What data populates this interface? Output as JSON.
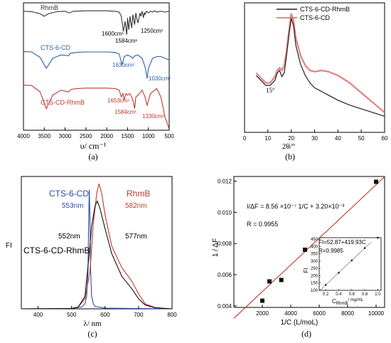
{
  "chart_data": [
    {
      "panel_label": "(a)",
      "type": "line",
      "xlabel": "υ/ cm⁻¹",
      "xlim": [
        4000,
        500
      ],
      "xticks": [
        4000,
        3500,
        3000,
        2500,
        2000,
        1500,
        1000,
        500
      ],
      "series": [
        {
          "name": "RhmB",
          "color": "#333333",
          "x": [
            4000,
            3800,
            3600,
            3500,
            3400,
            3200,
            3000,
            2900,
            2800,
            2500,
            2200,
            2000,
            1800,
            1700,
            1650,
            1600,
            1560,
            1520,
            1500,
            1470,
            1440,
            1400,
            1370,
            1330,
            1300,
            1280,
            1250,
            1200,
            1180,
            1150,
            1120,
            1100,
            1080,
            1050,
            1000,
            950,
            900,
            850,
            800,
            700,
            600,
            500
          ],
          "y": [
            10,
            10.5,
            13,
            16,
            13,
            10.5,
            10,
            12,
            10,
            9.5,
            9.5,
            9.5,
            10,
            11,
            16,
            34,
            22,
            38,
            18,
            32,
            16,
            30,
            14,
            26,
            12,
            18,
            24,
            12,
            16,
            10,
            18,
            12,
            14,
            10,
            12,
            10,
            11,
            9.5,
            11,
            10,
            11,
            10
          ]
        },
        {
          "name": "CTS-6-CD",
          "color": "#2e5fa8",
          "x": [
            4000,
            3800,
            3600,
            3450,
            3300,
            3100,
            2920,
            2870,
            2700,
            2500,
            2200,
            2000,
            1800,
            1700,
            1630,
            1580,
            1500,
            1420,
            1380,
            1320,
            1250,
            1150,
            1080,
            1030,
            1000,
            900,
            800,
            700,
            600,
            500
          ],
          "y": [
            58,
            58.5,
            65,
            78,
            66,
            62,
            63,
            60,
            59,
            58.5,
            58.5,
            58.5,
            59,
            61,
            74,
            64,
            62,
            64,
            66,
            63,
            62,
            66,
            76,
            90,
            78,
            66,
            64,
            64,
            66,
            68
          ]
        },
        {
          "name": "CTS-CD-RhmB",
          "color": "#c0392b",
          "x": [
            4000,
            3800,
            3600,
            3450,
            3300,
            3100,
            2920,
            2850,
            2700,
            2500,
            2200,
            2000,
            1800,
            1700,
            1653,
            1610,
            1584,
            1540,
            1500,
            1450,
            1400,
            1360,
            1330,
            1300,
            1250,
            1150,
            1080,
            1030,
            950,
            900,
            800,
            700,
            600,
            500
          ],
          "y": [
            98,
            98.5,
            106,
            126,
            110,
            104,
            106,
            103,
            102,
            101.5,
            101.5,
            101.5,
            102,
            104,
            112,
            108,
            116,
            108,
            110,
            108,
            112,
            118,
            126,
            112,
            110,
            104,
            112,
            122,
            108,
            106,
            102,
            112,
            136,
            150
          ]
        }
      ],
      "annotations": [
        "1600cm¹",
        "1584cm¹",
        "1250cm¹",
        "1630cm¹",
        "1030cm¹",
        "1653cm¹",
        "1584cm¹",
        "1330cm¹"
      ]
    },
    {
      "panel_label": "(b)",
      "type": "line",
      "xlabel": "2θ/°",
      "xlim": [
        0,
        60
      ],
      "xticks": [
        0,
        10,
        20,
        30,
        40,
        50,
        60
      ],
      "ylim": [
        0,
        100
      ],
      "legend": "top-right",
      "series": [
        {
          "name": "CTS-6-CD-RhmB",
          "color": "#222222",
          "x": [
            5,
            7,
            9,
            11,
            13,
            14,
            15,
            16,
            17,
            18,
            19,
            20,
            21,
            22,
            24,
            26,
            28,
            30,
            33,
            36,
            40,
            45,
            50,
            55,
            60
          ],
          "y": [
            46,
            42,
            38,
            38,
            42,
            48,
            50,
            45,
            48,
            62,
            78,
            92,
            86,
            70,
            55,
            46,
            40,
            36,
            33,
            30,
            26,
            22,
            19,
            16,
            13
          ]
        },
        {
          "name": "CTS-6-CD",
          "color": "#e06060",
          "x": [
            5,
            7,
            9,
            11,
            13,
            14,
            15,
            16,
            17,
            18,
            19,
            20,
            21,
            22,
            24,
            26,
            28,
            30,
            33,
            36,
            40,
            45,
            50,
            55,
            60
          ],
          "y": [
            48,
            44,
            40,
            40,
            45,
            50,
            52,
            50,
            54,
            66,
            82,
            96,
            90,
            76,
            62,
            54,
            50,
            49,
            50,
            49,
            46,
            40,
            32,
            24,
            16
          ]
        }
      ],
      "annotations": [
        "15°"
      ]
    },
    {
      "panel_label": "(c)",
      "type": "line",
      "xlabel": "λ/ nm",
      "ylabel": "FI",
      "xlim": [
        350,
        800
      ],
      "xticks": [
        400,
        500,
        600,
        700,
        800
      ],
      "ylim": [
        0,
        100
      ],
      "series": [
        {
          "name": "CTS-6-CD",
          "color": "#2a4bb0",
          "x": [
            350,
            500,
            530,
            540,
            545,
            549,
            551,
            553,
            555,
            557,
            560,
            565,
            570,
            600,
            800
          ],
          "y": [
            0,
            0.3,
            1.5,
            4,
            10,
            30,
            70,
            95,
            70,
            30,
            10,
            4,
            2,
            0.5,
            0
          ]
        },
        {
          "name": "RhmB",
          "color": "#c0392b",
          "x": [
            350,
            500,
            520,
            540,
            555,
            565,
            575,
            582,
            590,
            600,
            620,
            650,
            680,
            700,
            720,
            750,
            800
          ],
          "y": [
            0,
            0.3,
            1.5,
            8,
            30,
            68,
            92,
            100,
            92,
            75,
            50,
            33,
            22,
            12,
            4,
            1,
            0
          ]
        },
        {
          "name": "CTS-6-CD-RhmB",
          "color": "#111111",
          "x": [
            350,
            500,
            520,
            540,
            552,
            560,
            570,
            577,
            585,
            600,
            620,
            650,
            680,
            700,
            720,
            750,
            800
          ],
          "y": [
            0,
            0.3,
            1.5,
            10,
            42,
            66,
            82,
            86,
            80,
            64,
            44,
            26,
            16,
            8,
            3,
            0.8,
            0
          ]
        }
      ],
      "annotations": [
        "553nm",
        "582nm",
        "552nm",
        "577nm"
      ]
    },
    {
      "panel_label": "(d)",
      "type": "scatter",
      "xlabel": "1/C (L/moL)",
      "ylabel": "1 / ΔF",
      "xlim": [
        0,
        10600
      ],
      "ylim": [
        0.0039,
        0.0123
      ],
      "xticks": [
        2000,
        4000,
        6000,
        8000,
        10000
      ],
      "yticks": [
        0.004,
        0.006,
        0.008,
        0.01,
        0.012
      ],
      "points": {
        "x": [
          2000,
          2500,
          3333,
          5000,
          10000
        ],
        "y": [
          0.00433,
          0.00557,
          0.00566,
          0.0076,
          0.01196
        ]
      },
      "fit": {
        "x": [
          0,
          10600
        ],
        "y": [
          0.0032,
          0.01228
        ],
        "color": "#c0392b"
      },
      "equation": "I/ΔF = 8.56 ×10⁻⁷ 1/C + 3.20×10⁻³",
      "r_text": "R = 0.9955",
      "inset": {
        "type": "scatter",
        "equation": "FI=52.87+419.93C",
        "r_text": "R=0.9985",
        "ylabel": "FI",
        "xlabel_main": "C",
        "xlabel_sub": "RhmB",
        "xlabel_unit": "/ mg/mL",
        "xlim": [
          0.1,
          1.05
        ],
        "ylim": [
          100,
          460
        ],
        "xticks": [
          0.2,
          0.4,
          0.6,
          0.8,
          1.0
        ],
        "yticks": [
          100,
          150,
          200,
          250,
          300,
          350,
          400,
          450
        ],
        "points": {
          "x": [
            0.2,
            0.4,
            0.6,
            0.8,
            1.0
          ],
          "y": [
            137,
            220,
            305,
            389,
            473
          ]
        }
      }
    }
  ],
  "labels": {
    "a_rhmb": "RhmB",
    "a_cts": "CTS-6-CD",
    "a_ctscd": "CTS-CD-RhmB",
    "b_legend1": "CTS-6-CD-RhmB",
    "b_legend2": "CTS-6-CD",
    "c_cts": "CTS-6-CD",
    "c_rhmb": "RhmB",
    "c_combo": "CTS-6-CD-RhmB"
  }
}
